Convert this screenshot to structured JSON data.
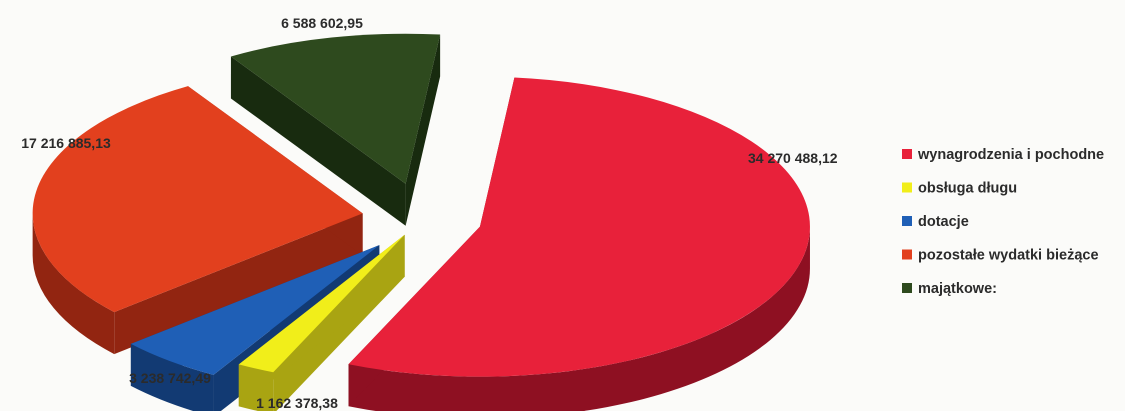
{
  "chart_data": {
    "type": "pie",
    "style": "3d-exploded",
    "title": "",
    "legend_position": "right",
    "slices": [
      {
        "label": "wynagrodzenia i pochodne",
        "value": 34270488.12,
        "display": "34 270 488,12",
        "color": "#e8213a",
        "side_color": "#8e1022"
      },
      {
        "label": "obsługa długu",
        "value": 1162378.38,
        "display": "1 162 378,38",
        "color": "#f1ee1a",
        "side_color": "#a9a412"
      },
      {
        "label": "dotacje",
        "value": 3238742.49,
        "display": "3 238 742,49",
        "color": "#1f5fb6",
        "side_color": "#123a73"
      },
      {
        "label": "pozostałe wydatki bieżące",
        "value": 17216885.13,
        "display": "17 216 885,13",
        "color": "#e2401e",
        "side_color": "#922511"
      },
      {
        "label": "majątkowe:",
        "value": 6588602.95,
        "display": "6 588 602,95",
        "color": "#2e4a1e",
        "side_color": "#182b0f"
      }
    ]
  }
}
